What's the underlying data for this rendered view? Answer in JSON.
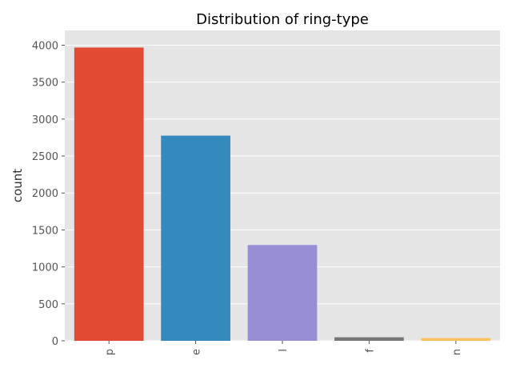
{
  "chart_data": {
    "type": "bar",
    "title": "Distribution of ring-type",
    "xlabel": "",
    "ylabel": "count",
    "categories": [
      "p",
      "e",
      "l",
      "f",
      "n"
    ],
    "values": [
      3968,
      2776,
      1296,
      48,
      36
    ],
    "colors": [
      "#E24A33",
      "#348ABD",
      "#988ED5",
      "#777777",
      "#FBC15E"
    ],
    "ylim": [
      0,
      4200
    ],
    "yticks": [
      0,
      500,
      1000,
      1500,
      2000,
      2500,
      3000,
      3500,
      4000
    ],
    "grid": true,
    "background": "#E5E5E5",
    "grid_color": "#FFFFFF"
  }
}
